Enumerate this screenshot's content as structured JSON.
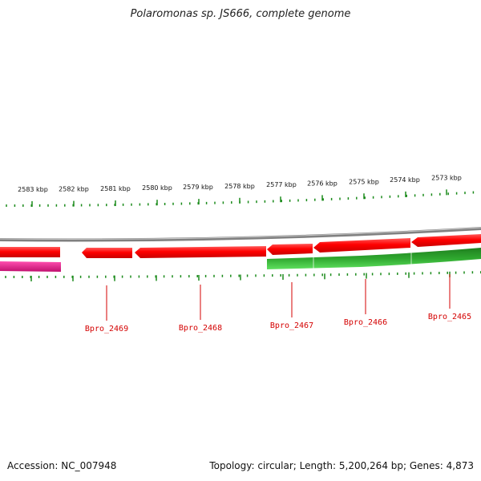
{
  "title": "Polaromonas sp. JS666, complete genome",
  "footer": {
    "accession": "Accession: NC_007948",
    "stats": "Topology: circular; Length: 5,200,264 bp; Genes: 4,873"
  },
  "colors": {
    "tick": "#1a8a1a",
    "backbone": "#808080",
    "forward_gene": "#ff0000",
    "reverse_gene": "#e0188a",
    "green_track": "#2db52d",
    "gene_label": "#d40000"
  },
  "scale_labels": [
    "2583 kbp",
    "2582 kbp",
    "2581 kbp",
    "2580 kbp",
    "2579 kbp",
    "2578 kbp",
    "2577 kbp",
    "2576 kbp",
    "2575 kbp",
    "2574 kbp",
    "2573 kbp"
  ],
  "gene_labels": [
    "Bpro_2469",
    "Bpro_2468",
    "Bpro_2467",
    "Bpro_2466",
    "Bpro_2465"
  ]
}
